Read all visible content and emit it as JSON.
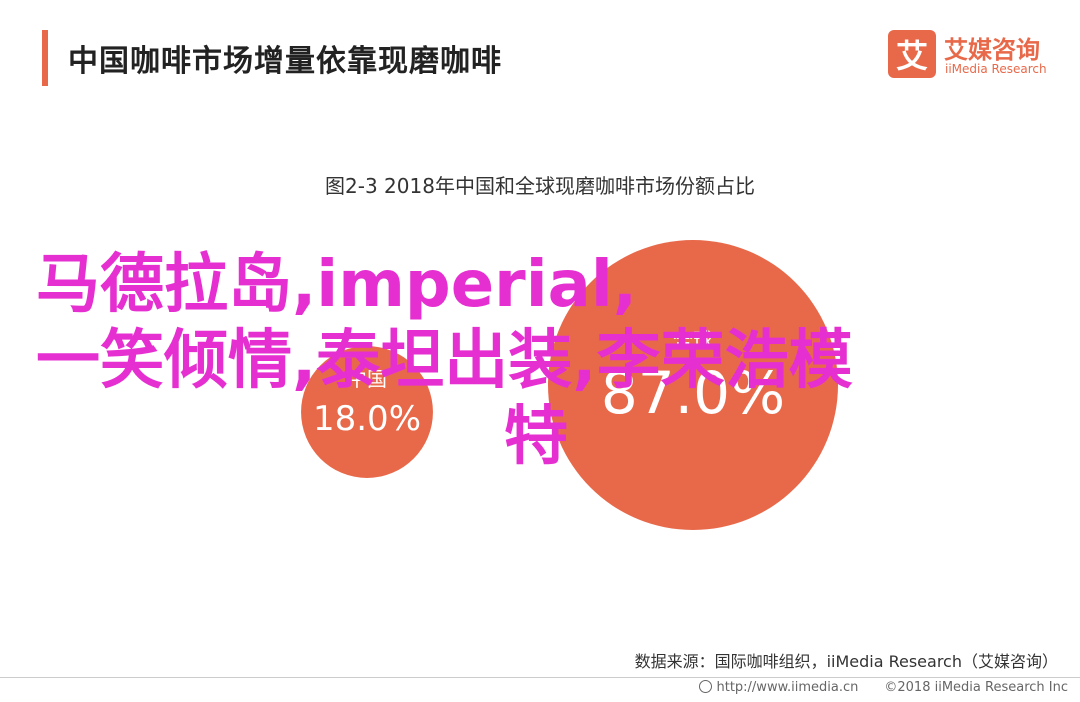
{
  "header": {
    "title": "中国咖啡市场增量依靠现磨咖啡",
    "accent_color": "#e8694a"
  },
  "logo": {
    "mark": "艾",
    "name_cn": "艾媒咨询",
    "name_en": "iiMedia Research"
  },
  "overlay_text": {
    "line1": "马德拉岛,imperial,",
    "line2": "一笑倾情,泰坦出装,李荣浩模",
    "line3": "特",
    "color": "#e62fd1"
  },
  "chart_data": {
    "type": "bubble",
    "title": "图2-3 2018年中国和全球现磨咖啡市场份额占比",
    "series": [
      {
        "name": "中国",
        "value": 18.0,
        "label": "18.0%",
        "color": "#e8694a"
      },
      {
        "name": "全球",
        "value": 87.0,
        "label": "87.0%",
        "color": "#e8694a"
      }
    ]
  },
  "source": "数据来源：国际咖啡组织，iiMedia Research（艾媒咨询）",
  "footer": {
    "url": "http://www.iimedia.cn",
    "copyright": "©2018  iiMedia Research  Inc"
  }
}
